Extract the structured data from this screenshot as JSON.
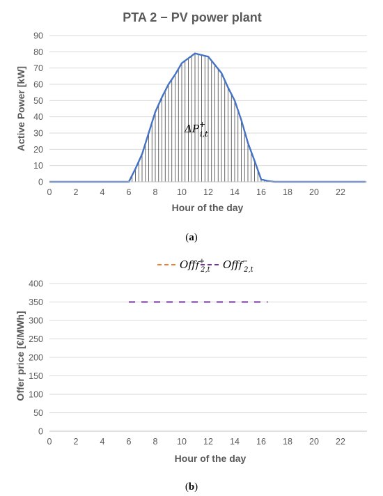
{
  "captions": [
    "(a)",
    "(b)"
  ],
  "chart_data": [
    {
      "type": "area",
      "title": "PTA 2 − PV power plant",
      "xlabel": "Hour of the day",
      "ylabel": "Active Power [kW]",
      "xlim": [
        0,
        24
      ],
      "ylim": [
        0,
        90
      ],
      "yticks": [
        "0",
        "10",
        "20",
        "30",
        "40",
        "50",
        "60",
        "70",
        "80",
        "90"
      ],
      "xticks": [
        "0",
        "2",
        "4",
        "6",
        "8",
        "10",
        "12",
        "14",
        "16",
        "18",
        "20",
        "22"
      ],
      "annotation": {
        "base": "ΔP",
        "sup": "+",
        "sub": "i,t"
      },
      "line_color": "#4472c4",
      "hatch_color": "#404040",
      "x": [
        0,
        1,
        2,
        3,
        4,
        5,
        6,
        6.5,
        7,
        7.5,
        8,
        8.5,
        9,
        9.5,
        10,
        10.5,
        11,
        11.5,
        12,
        12.5,
        13,
        13.5,
        14,
        14.5,
        15,
        15.5,
        16,
        16.5,
        17,
        18,
        19,
        20,
        21,
        22,
        23,
        23.9
      ],
      "values": [
        0,
        0,
        0,
        0,
        0,
        0,
        0,
        8,
        17,
        30,
        43,
        52,
        60,
        66,
        73,
        76,
        79,
        78,
        77,
        72,
        67,
        58,
        50,
        38,
        24,
        13,
        1.5,
        0.5,
        0,
        0,
        0,
        0,
        0,
        0,
        0,
        0
      ]
    },
    {
      "type": "line",
      "xlabel": "Hour of the day",
      "ylabel": "Offer price [€/MWh]",
      "xlim": [
        0,
        24
      ],
      "ylim": [
        0,
        400
      ],
      "yticks": [
        "0",
        "50",
        "100",
        "150",
        "200",
        "250",
        "300",
        "350",
        "400"
      ],
      "xticks": [
        "0",
        "2",
        "4",
        "6",
        "8",
        "10",
        "12",
        "14",
        "16",
        "18",
        "20",
        "22"
      ],
      "legend_position": "top",
      "series": [
        {
          "name": "Off",
          "sup": "+",
          "sub": "2,t",
          "color": "#ed7d31",
          "style": "dashed",
          "x": [],
          "values": []
        },
        {
          "name": "Off",
          "sup": "−",
          "sub": "2,t",
          "color": "#7030a0",
          "style": "dashed",
          "x": [
            6,
            16.5
          ],
          "values": [
            350,
            350
          ]
        }
      ]
    }
  ]
}
